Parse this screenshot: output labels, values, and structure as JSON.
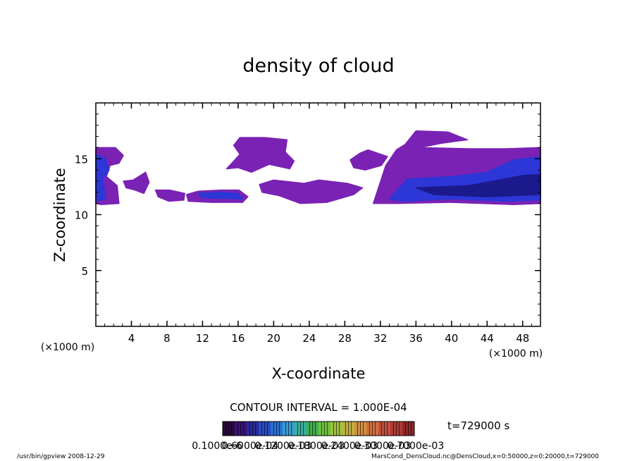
{
  "chart_data": {
    "type": "contour",
    "title": "density of cloud",
    "x_label": "X-coordinate",
    "y_label": "Z-coordinate",
    "x_unit": "(×1000 m)",
    "y_unit": "(×1000 m)",
    "xlim": [
      0,
      50
    ],
    "ylim": [
      0,
      20
    ],
    "xticks": [
      4,
      8,
      12,
      16,
      20,
      24,
      28,
      32,
      36,
      40,
      44,
      48
    ],
    "yticks": [
      5,
      10,
      15
    ],
    "regions": [
      {
        "color": "#7a22b4",
        "x": [
          0,
          2.2,
          3.1,
          2.6,
          1.6,
          1.2,
          2.4,
          2.6,
          0.6,
          0
        ],
        "z": [
          16,
          16,
          15.3,
          14.6,
          14.4,
          13.4,
          12.6,
          11,
          10.9,
          11
        ]
      },
      {
        "color": "#7a22b4",
        "x": [
          3.1,
          4.2,
          5.6,
          6,
          5.4,
          4.4,
          3.4
        ],
        "z": [
          13,
          13.1,
          13.8,
          12.9,
          11.9,
          12.2,
          12.4
        ]
      },
      {
        "color": "#7a22b4",
        "x": [
          6.7,
          8.3,
          10,
          9.9,
          8.2,
          7
        ],
        "z": [
          12.2,
          12.2,
          11.9,
          11.3,
          11.2,
          11.6
        ]
      },
      {
        "color": "#7a22b4",
        "x": [
          10.2,
          11.5,
          14,
          16.1,
          17.1,
          16.5,
          13,
          10.4
        ],
        "z": [
          11.8,
          12.1,
          12.2,
          12.2,
          11.6,
          11.1,
          11.1,
          11.2
        ]
      },
      {
        "color": "#7a22b4",
        "x": [
          15.5,
          16.2,
          19,
          21.5,
          21.3,
          22.3,
          21.8,
          19.5,
          17.5,
          16,
          14.7,
          15.4,
          16.2
        ],
        "z": [
          16.2,
          16.9,
          16.9,
          16.7,
          15.6,
          14.8,
          14.1,
          14.5,
          13.8,
          14.2,
          14.1,
          14.7,
          15.4
        ]
      },
      {
        "color": "#7a22b4",
        "x": [
          18.4,
          20,
          23.4,
          25.1,
          28.3,
          30,
          29,
          26,
          23,
          20.6,
          18.7
        ],
        "z": [
          12.7,
          13.1,
          12.8,
          13.1,
          12.8,
          12.4,
          11.8,
          11.1,
          11,
          11.7,
          12
        ]
      },
      {
        "color": "#7a22b4",
        "x": [
          28.6,
          29.7,
          30.6,
          32.8,
          32.1,
          30.3,
          29
        ],
        "z": [
          14.9,
          15.5,
          15.8,
          15.2,
          14.4,
          14,
          14.2
        ]
      },
      {
        "color": "#7a22b4",
        "x": [
          31.2,
          32.6,
          33.8,
          34.8,
          36,
          39.6,
          41.8,
          39,
          36.4,
          42,
          46,
          50,
          50,
          47,
          40,
          34,
          31.2
        ],
        "z": [
          11,
          14.4,
          15.8,
          16.3,
          17.5,
          17.4,
          16.7,
          16.4,
          16,
          15.9,
          15.9,
          16,
          11,
          10.9,
          11.1,
          11,
          11
        ]
      },
      {
        "color": "#2d36d6",
        "x": [
          0,
          1,
          1.5,
          0.8,
          1.1,
          0
        ],
        "z": [
          15.4,
          15.1,
          14,
          13.2,
          11.4,
          11.2
        ]
      },
      {
        "color": "#2d36d6",
        "x": [
          11.5,
          14,
          16,
          16.5,
          12
        ],
        "z": [
          11.9,
          12,
          11.9,
          11.4,
          11.5
        ]
      },
      {
        "color": "#2d36d6",
        "x": [
          33,
          35,
          40,
          44,
          47,
          50,
          50,
          46,
          40,
          34.5
        ],
        "z": [
          11.4,
          13.2,
          13.4,
          13.8,
          14.9,
          15.2,
          11.3,
          11.2,
          11.4,
          11.2
        ]
      },
      {
        "color": "#1a1a8c",
        "x": [
          36,
          42,
          48,
          50,
          50,
          44,
          38
        ],
        "z": [
          12.4,
          12.6,
          13.5,
          13.6,
          11.8,
          11.6,
          11.8
        ]
      }
    ],
    "contour_interval": "CONTOUR INTERVAL = 1.000E-04",
    "time_label": "t=729000 s",
    "colorbar_colors": [
      "#2a0a3c",
      "#3a1470",
      "#2a2a9a",
      "#2a4ac0",
      "#2a70d0",
      "#3a9ad0",
      "#3ab0a0",
      "#40b050",
      "#70c040",
      "#a0c040",
      "#c0b040",
      "#d09040",
      "#d07040",
      "#c05040",
      "#b03a3a",
      "#902828"
    ],
    "colorbar_labels": [
      "0.1000e-6",
      "0.6000e-04",
      "0.1200e-03",
      "0.1800e-03",
      "0.2400e-03",
      "0.3000e-03",
      "0.7000e-03"
    ],
    "footer_left": "/usr/bin/gpview   2008-12-29",
    "footer_right": "MarsCond_DensCloud.nc@DensCloud,x=0:50000,z=0:20000,t=729000"
  }
}
